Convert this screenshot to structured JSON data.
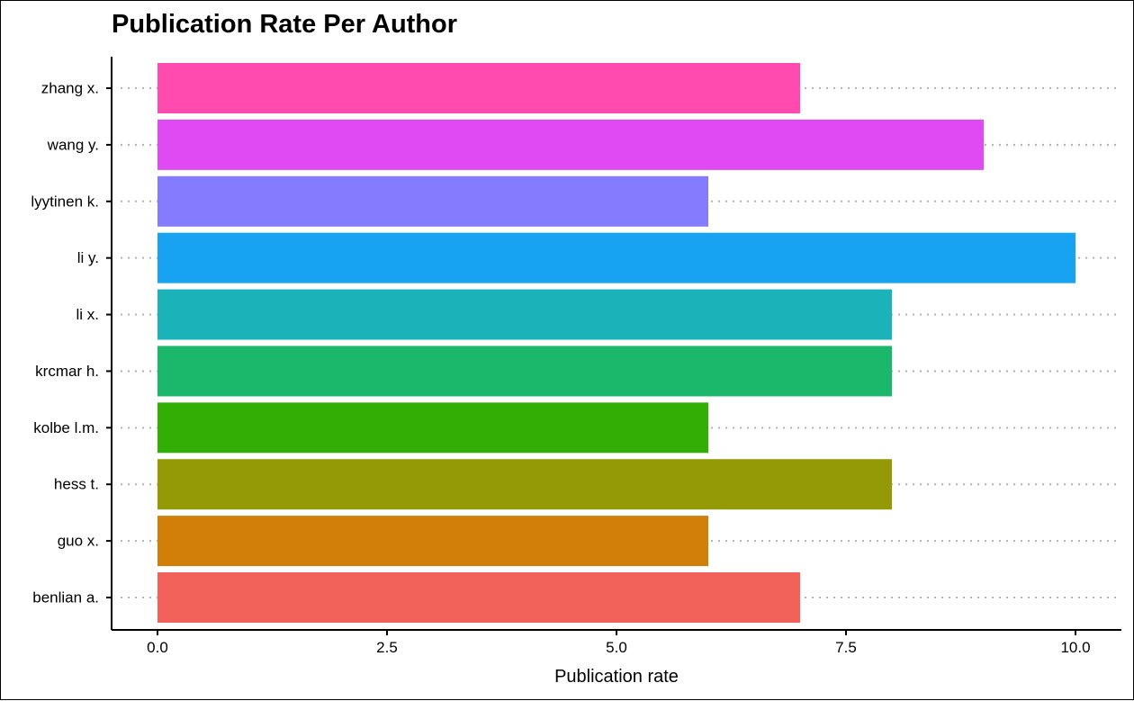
{
  "chart_data": {
    "type": "bar",
    "orientation": "horizontal",
    "title": "Publication Rate Per Author",
    "xlabel": "Publication rate",
    "ylabel": "",
    "xlim": [
      0,
      10
    ],
    "xticks": [
      "0.0",
      "2.5",
      "5.0",
      "7.5",
      "10.0"
    ],
    "xtick_values": [
      0,
      2.5,
      5,
      7.5,
      10
    ],
    "grid": "dotted horizontal lines at each category",
    "legend": "none",
    "bars": [
      {
        "label": "zhang x.",
        "value": 7,
        "color": "#FF4AAF"
      },
      {
        "label": "wang y.",
        "value": 9,
        "color": "#DF4AF2"
      },
      {
        "label": "lyytinen k.",
        "value": 6,
        "color": "#857BFF"
      },
      {
        "label": "li y.",
        "value": 10,
        "color": "#18A2F2"
      },
      {
        "label": "li x.",
        "value": 8,
        "color": "#1BB3BA"
      },
      {
        "label": "krcmar h.",
        "value": 8,
        "color": "#1BB76B"
      },
      {
        "label": "kolbe l.m.",
        "value": 6,
        "color": "#33AE04"
      },
      {
        "label": "hess t.",
        "value": 8,
        "color": "#939A05"
      },
      {
        "label": "guo x.",
        "value": 6,
        "color": "#D17F08"
      },
      {
        "label": "benlian a.",
        "value": 7,
        "color": "#F2625B"
      }
    ]
  }
}
